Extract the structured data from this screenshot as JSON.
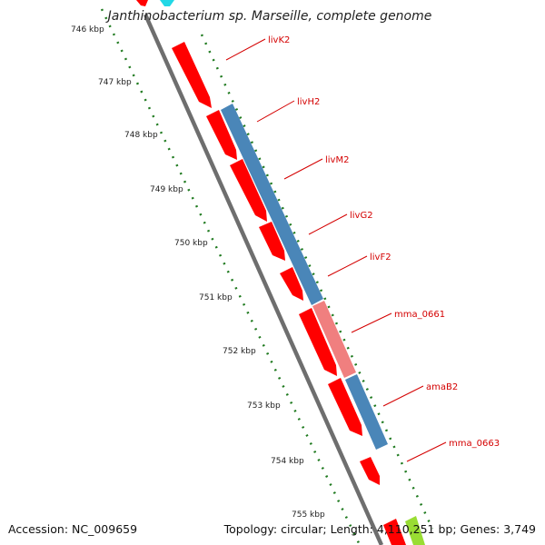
{
  "map": {
    "title": "Janthinobacterium sp. Marseille, complete genome",
    "ticks": [
      "746 kbp",
      "747 kbp",
      "748 kbp",
      "749 kbp",
      "750 kbp",
      "751 kbp",
      "752 kbp",
      "753 kbp",
      "754 kbp",
      "755 kbp"
    ],
    "genes": [
      {
        "name": "livK2",
        "strand": "forward",
        "color": "#ff0000"
      },
      {
        "name": "livH2",
        "strand": "forward",
        "color": "#ff0000"
      },
      {
        "name": "livM2",
        "strand": "forward",
        "color": "#ff0000"
      },
      {
        "name": "livG2",
        "strand": "forward",
        "color": "#ff0000"
      },
      {
        "name": "livF2",
        "strand": "forward",
        "color": "#ff0000"
      },
      {
        "name": "mma_0661",
        "strand": "forward",
        "color": "#ff0000"
      },
      {
        "name": "amaB2",
        "strand": "forward",
        "color": "#ff0000"
      },
      {
        "name": "mma_0663",
        "strand": "forward",
        "color": "#ff0000"
      }
    ],
    "colors": {
      "cds": "#ff0000",
      "blast_blue": "#4a86b8",
      "blast_pink": "#f07f7f",
      "backbone": "#808080",
      "ticks": "#1f7a1f",
      "labels": "#d40000"
    }
  },
  "footer": {
    "accession": "Accession: NC_009659",
    "topology": "Topology: circular; Length: 4,110,251 bp; Genes: 3,749"
  }
}
